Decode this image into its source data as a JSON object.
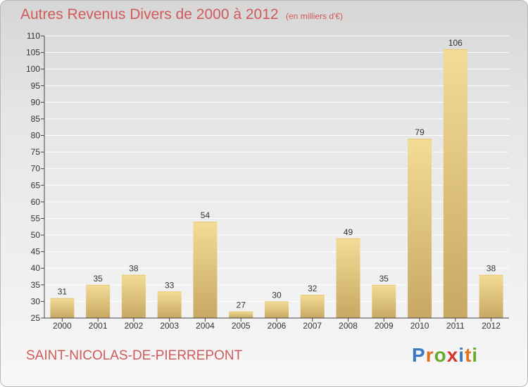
{
  "title": "Autres Revenus Divers de 2000 à 2012",
  "unit_note": "(en milliers d'€)",
  "commune": "SAINT-NICOLAS-DE-PIERREPONT",
  "logo": {
    "text": "Proxiti",
    "colors": [
      "#3a78c4",
      "#e0701a",
      "#6aaa2a",
      "#d8342a",
      "#3a78c4",
      "#e0701a",
      "#6aaa2a"
    ]
  },
  "colors": {
    "bar_light": "#f3dc96",
    "bar_dark": "#c8a862",
    "grid": "#ffffff",
    "axis": "#444444",
    "text": "#333333",
    "accent": "#d05a5a"
  },
  "chart_data": {
    "type": "bar",
    "title": "Autres Revenus Divers de 2000 à 2012",
    "categories": [
      "2000",
      "2001",
      "2002",
      "2003",
      "2004",
      "2005",
      "2006",
      "2007",
      "2008",
      "2009",
      "2010",
      "2011",
      "2012"
    ],
    "values": [
      31,
      35,
      38,
      33,
      54,
      27,
      30,
      32,
      49,
      35,
      79,
      106,
      38
    ],
    "ylim": [
      25,
      110
    ],
    "yticks": [
      25,
      30,
      35,
      40,
      45,
      50,
      55,
      60,
      65,
      70,
      75,
      80,
      85,
      90,
      95,
      100,
      105,
      110
    ],
    "grid": true,
    "xlabel": "",
    "ylabel": ""
  }
}
